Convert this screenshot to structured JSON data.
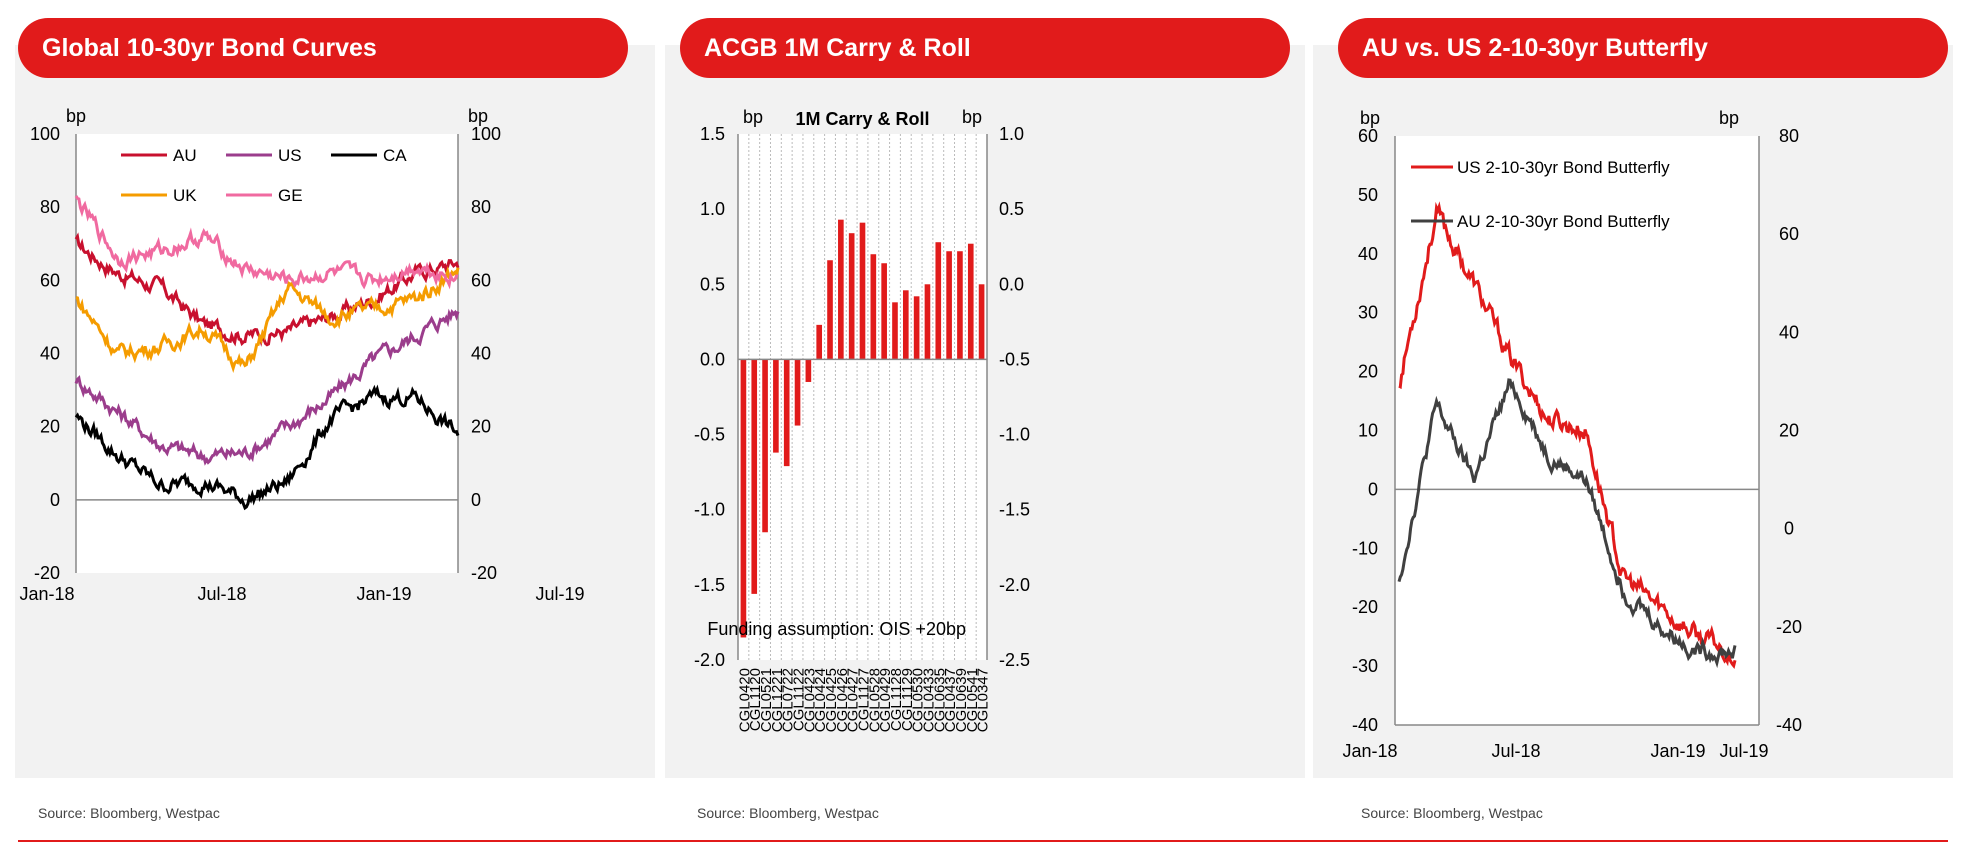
{
  "colors": {
    "accent": "#e11b1b",
    "panel_bg": "#f2f2f2"
  },
  "panels": [
    {
      "title": "Global 10-30yr Bond Curves",
      "source": "Source: Bloomberg, Westpac"
    },
    {
      "title": "ACGB 1M Carry & Roll",
      "source": "Source: Bloomberg, Westpac"
    },
    {
      "title": "AU vs. US 2-10-30yr Butterfly",
      "source": "Source: Bloomberg, Westpac"
    }
  ],
  "chart_data": [
    {
      "type": "line",
      "title": "Global 10-30yr Bond Curves",
      "ylabel_left": "bp",
      "ylabel_right": "bp",
      "ylim": [
        -20,
        100
      ],
      "yticks": [
        "100",
        "80",
        "60",
        "40",
        "20",
        "0",
        "-20"
      ],
      "xticks": [
        "Jan-18",
        "Jul-18",
        "Jan-19",
        "Jul-19"
      ],
      "x": [
        "Jan-18",
        "Mar-18",
        "May-18",
        "Jul-18",
        "Sep-18",
        "Nov-18",
        "Jan-19",
        "Mar-19",
        "May-19",
        "Jul-19"
      ],
      "series": [
        {
          "name": "AU",
          "color": "#c8102e",
          "values": [
            70,
            62,
            58,
            48,
            45,
            46,
            50,
            55,
            62,
            65
          ]
        },
        {
          "name": "US",
          "color": "#9b3d8c",
          "values": [
            33,
            24,
            15,
            12,
            13,
            20,
            28,
            38,
            45,
            52
          ]
        },
        {
          "name": "CA",
          "color": "#000000",
          "values": [
            23,
            12,
            4,
            5,
            0,
            5,
            22,
            28,
            28,
            18
          ]
        },
        {
          "name": "UK",
          "color": "#f59c00",
          "values": [
            55,
            40,
            42,
            47,
            36,
            58,
            50,
            52,
            55,
            63
          ]
        },
        {
          "name": "GE",
          "color": "#f06aa0",
          "values": [
            82,
            66,
            68,
            72,
            63,
            60,
            62,
            60,
            64,
            61
          ]
        }
      ]
    },
    {
      "type": "bar",
      "title": "1M Carry & Roll",
      "ylabel_left": "bp",
      "ylabel_right": "bp",
      "ylim": [
        -2.0,
        1.5
      ],
      "yticks_left": [
        "1.5",
        "1.0",
        "0.5",
        "0.0",
        "-0.5",
        "-1.0",
        "-1.5",
        "-2.0"
      ],
      "yticks_right": [
        "1.0",
        "0.5",
        "0.0",
        "-0.5",
        "-1.0",
        "-1.5",
        "-2.0",
        "-2.5"
      ],
      "annotation": "Funding assumption: OIS +20bp",
      "categories": [
        "CGL0420",
        "CGL1120",
        "CGL0521",
        "CGL1221",
        "CGL0722",
        "CGL1122",
        "CGL0423",
        "CGL0424",
        "CGL0425",
        "CGL0426",
        "CGL0427",
        "CGL1127",
        "CGL0528",
        "CGL0429",
        "CGL1128",
        "CGL1129",
        "CGL0530",
        "CGL0433",
        "CGL0635",
        "CGL0437",
        "CGL0639",
        "CGL0541",
        "CGL0347"
      ],
      "values": [
        -1.85,
        -1.56,
        -1.15,
        -0.62,
        -0.71,
        -0.44,
        -0.15,
        0.23,
        0.66,
        0.93,
        0.84,
        0.91,
        0.7,
        0.64,
        0.38,
        0.46,
        0.42,
        0.5,
        0.78,
        0.72,
        0.72,
        0.77,
        0.5
      ]
    },
    {
      "type": "line",
      "title": "AU vs. US 2-10-30yr Butterfly",
      "ylabel_left": "bp",
      "ylabel_right": "bp",
      "ylim_left": [
        -40,
        60
      ],
      "ylim_right": [
        -40,
        80
      ],
      "yticks_left": [
        "60",
        "50",
        "40",
        "30",
        "20",
        "10",
        "0",
        "-10",
        "-20",
        "-30",
        "-40"
      ],
      "yticks_right": [
        "80",
        "60",
        "40",
        "20",
        "0",
        "-20",
        "-40"
      ],
      "xticks": [
        "Jan-18",
        "Jul-18",
        "Jan-19",
        "Jul-19"
      ],
      "x": [
        "Jan-18",
        "Mar-18",
        "May-18",
        "Jul-18",
        "Sep-18",
        "Nov-18",
        "Jan-19",
        "Mar-19",
        "May-19",
        "Jul-19"
      ],
      "series": [
        {
          "name": "US 2-10-30yr Bond Butterfly",
          "axis": "left",
          "color": "#e11b1b",
          "values": [
            18,
            47,
            35,
            22,
            12,
            10,
            -15,
            -20,
            -25,
            -28
          ]
        },
        {
          "name": "AU 2-10-30yr Bond Butterfly",
          "axis": "right",
          "color": "#404040",
          "values": [
            -10,
            25,
            10,
            30,
            15,
            10,
            -12,
            -20,
            -25,
            -25
          ]
        }
      ]
    }
  ]
}
